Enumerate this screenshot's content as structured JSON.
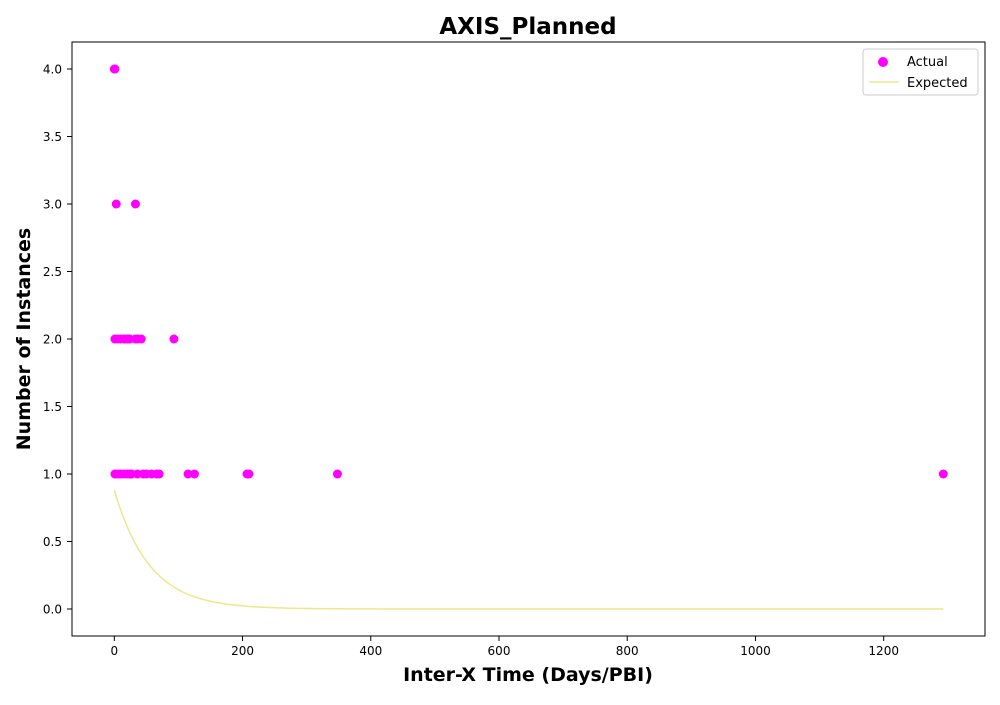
{
  "chart_data": {
    "type": "scatter",
    "title": "AXIS_Planned",
    "xlabel": "Inter-X Time (Days/PBI)",
    "ylabel": "Number of Instances",
    "xlim": [
      -66,
      1358
    ],
    "ylim": [
      -0.2,
      4.2
    ],
    "xticks": [
      0,
      200,
      400,
      600,
      800,
      1000,
      1200
    ],
    "yticks": [
      0.0,
      0.5,
      1.0,
      1.5,
      2.0,
      2.5,
      3.0,
      3.5,
      4.0
    ],
    "xtick_labels": [
      "0",
      "200",
      "400",
      "600",
      "800",
      "1000",
      "1200"
    ],
    "ytick_labels": [
      "0.0",
      "0.5",
      "1.0",
      "1.5",
      "2.0",
      "2.5",
      "3.0",
      "3.5",
      "4.0"
    ],
    "grid": false,
    "legend_placement": "top-right",
    "series": [
      {
        "name": "Actual",
        "kind": "scatter",
        "color": "#ff00ff",
        "points": [
          [
            0,
            4
          ],
          [
            1,
            4
          ],
          [
            3,
            3
          ],
          [
            33,
            3
          ],
          [
            1,
            2
          ],
          [
            5,
            2
          ],
          [
            10,
            2
          ],
          [
            15,
            2
          ],
          [
            19,
            2
          ],
          [
            22,
            2
          ],
          [
            24,
            2
          ],
          [
            33,
            2
          ],
          [
            36,
            2
          ],
          [
            42,
            2
          ],
          [
            93,
            2
          ],
          [
            1,
            1
          ],
          [
            3,
            1
          ],
          [
            7,
            1
          ],
          [
            10,
            1
          ],
          [
            15,
            1
          ],
          [
            20,
            1
          ],
          [
            24,
            1
          ],
          [
            25,
            1
          ],
          [
            27,
            1
          ],
          [
            36,
            1
          ],
          [
            45,
            1
          ],
          [
            50,
            1
          ],
          [
            58,
            1
          ],
          [
            66,
            1
          ],
          [
            70,
            1
          ],
          [
            115,
            1
          ],
          [
            125,
            1
          ],
          [
            207,
            1
          ],
          [
            210,
            1
          ],
          [
            348,
            1
          ],
          [
            1293,
            1
          ]
        ]
      },
      {
        "name": "Expected",
        "kind": "line",
        "color": "#f0e68c",
        "function": "exponential_decay",
        "amplitude": 0.88,
        "rate": 0.0182,
        "x_range": [
          0,
          1293
        ]
      }
    ]
  }
}
